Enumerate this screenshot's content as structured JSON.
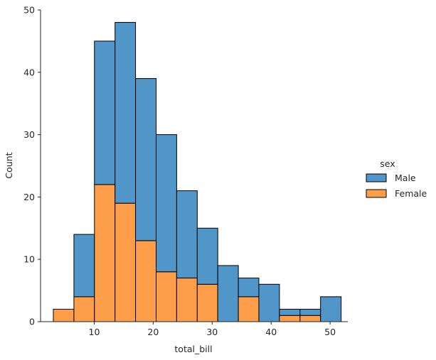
{
  "chart_data": {
    "type": "bar",
    "subtype": "stacked-histogram",
    "title": "",
    "xlabel": "total_bill",
    "ylabel": "Count",
    "xlim": [
      0.9,
      53.0
    ],
    "ylim": [
      0,
      50
    ],
    "xticks": [
      10,
      20,
      30,
      40,
      50
    ],
    "yticks": [
      0,
      10,
      20,
      30,
      40,
      50
    ],
    "bin_start": 3.07,
    "bin_width": 3.4855,
    "bins": [
      [
        3.07,
        6.56
      ],
      [
        6.56,
        10.04
      ],
      [
        10.04,
        13.53
      ],
      [
        13.53,
        17.01
      ],
      [
        17.01,
        20.5
      ],
      [
        20.5,
        23.98
      ],
      [
        23.98,
        27.47
      ],
      [
        27.47,
        30.95
      ],
      [
        30.95,
        34.44
      ],
      [
        34.44,
        37.92
      ],
      [
        37.92,
        41.41
      ],
      [
        41.41,
        44.9
      ],
      [
        44.9,
        48.38
      ],
      [
        48.38,
        51.87
      ]
    ],
    "series": [
      {
        "name": "Female",
        "color": "#ff9e4a",
        "edge": "#000000",
        "values": [
          2,
          4,
          22,
          19,
          13,
          8,
          7,
          6,
          0,
          4,
          0,
          1,
          1,
          0
        ]
      },
      {
        "name": "Male",
        "color": "#5096c8",
        "edge": "#000000",
        "values": [
          0,
          10,
          23,
          29,
          26,
          22,
          14,
          9,
          9,
          3,
          6,
          1,
          1,
          4
        ]
      }
    ],
    "legend": {
      "title": "sex",
      "placement": "right",
      "entries": [
        {
          "label": "Male",
          "color": "#5096c8"
        },
        {
          "label": "Female",
          "color": "#ff9e4a"
        }
      ]
    },
    "grid": false
  }
}
